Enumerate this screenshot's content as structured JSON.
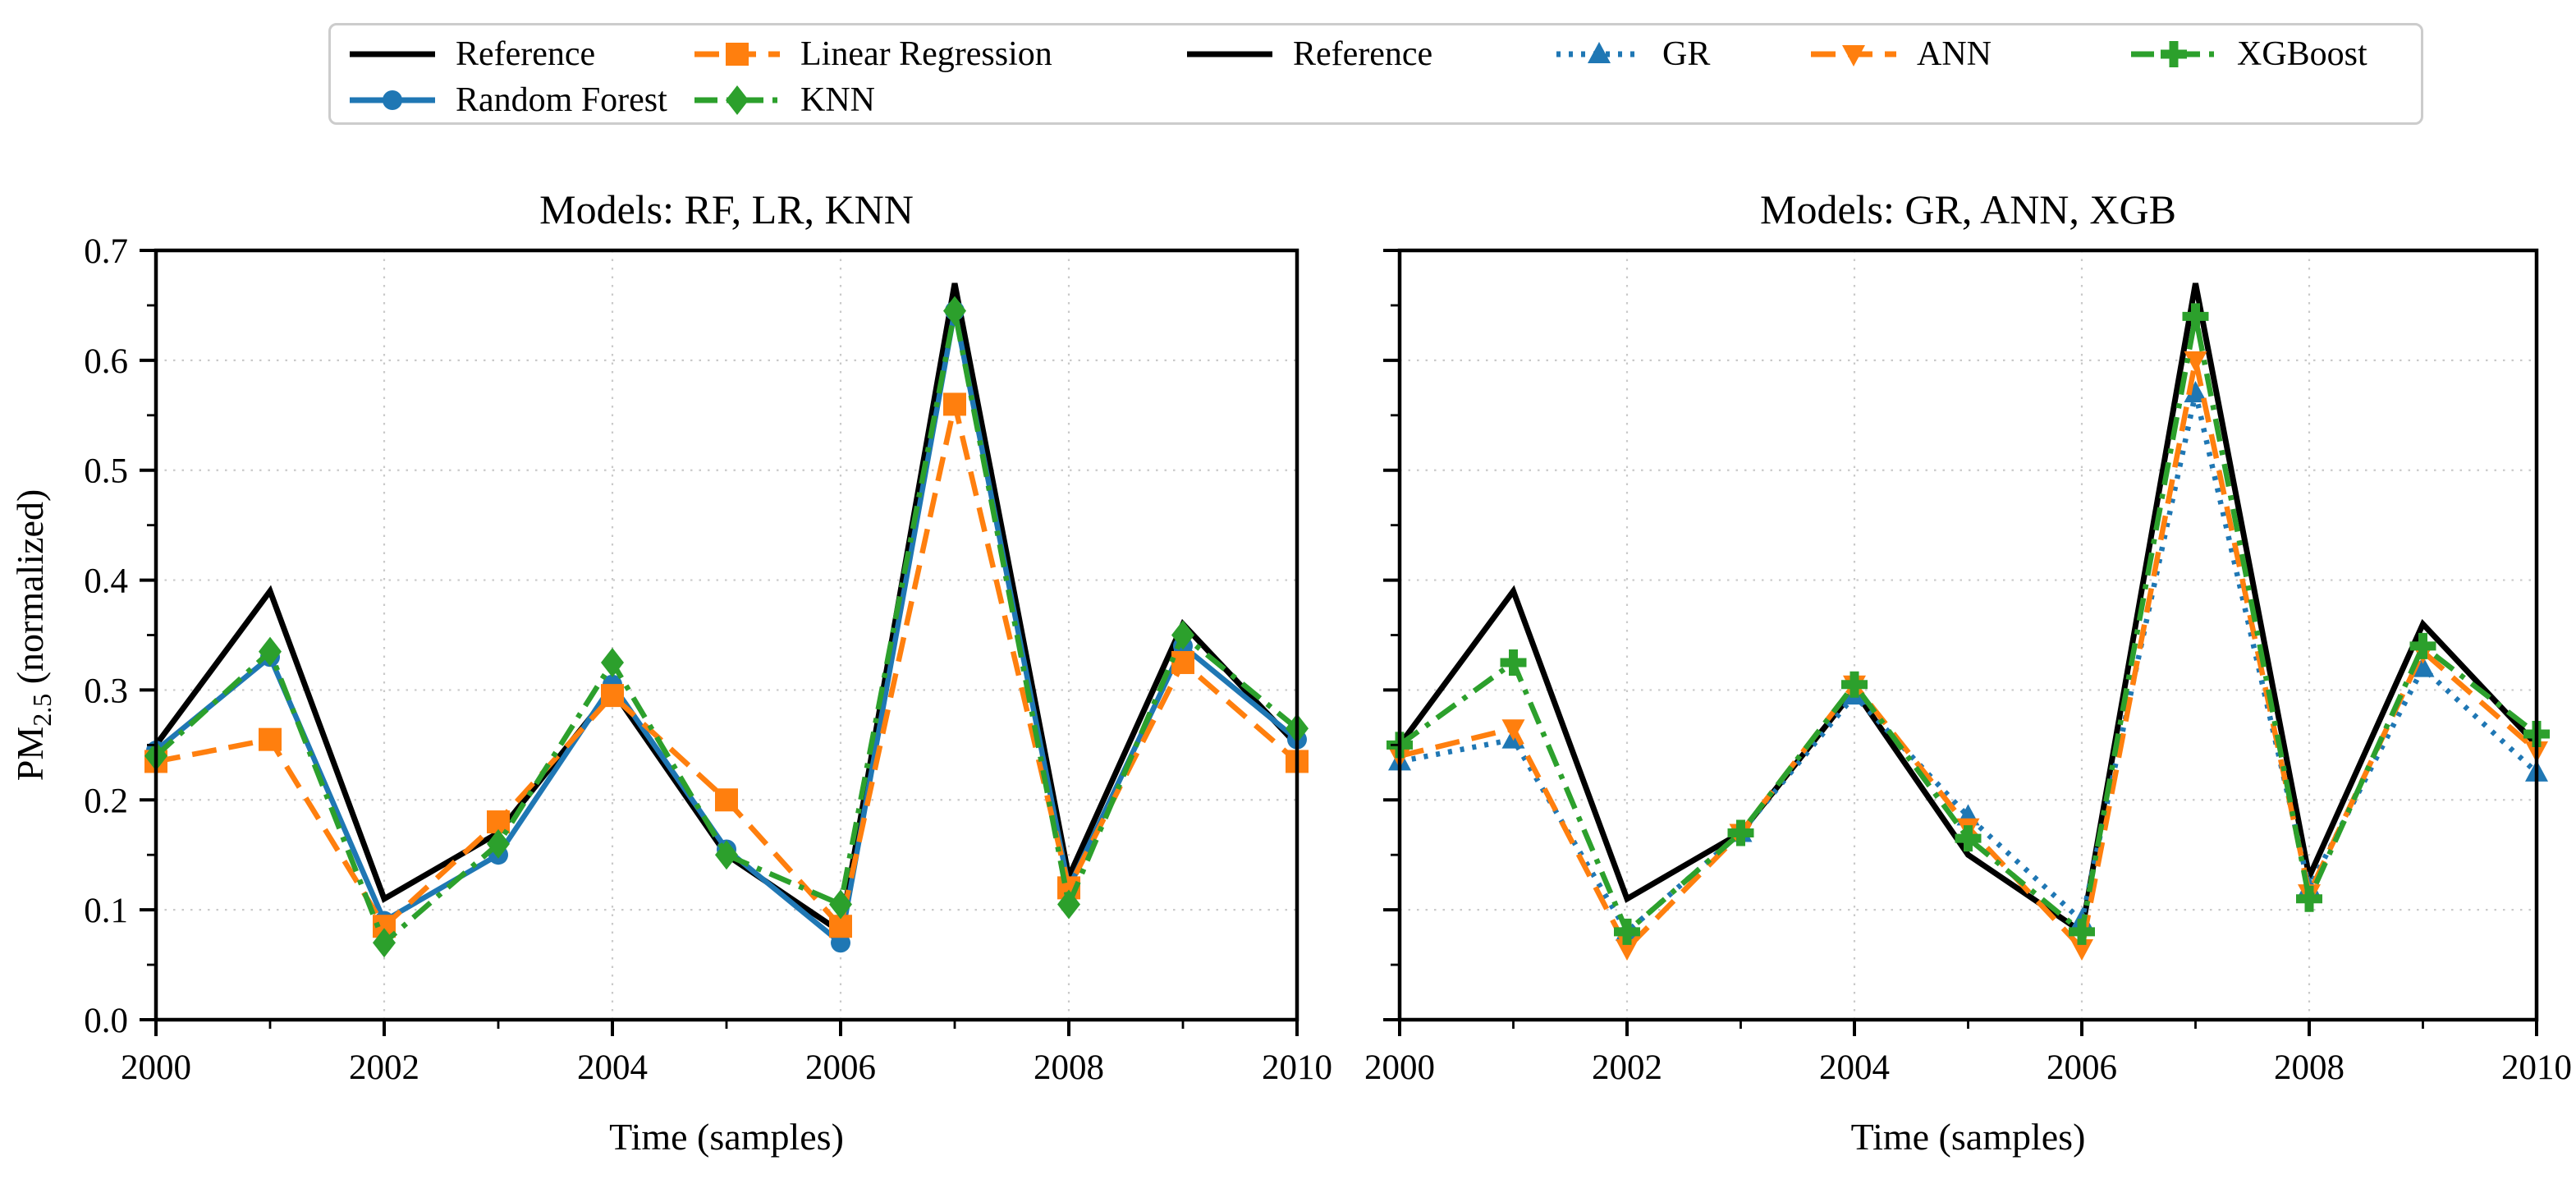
{
  "figure": {
    "background": "#ffffff",
    "colors": {
      "reference": "#000000",
      "blue": "#1f77b4",
      "orange": "#ff7f0e",
      "green": "#2ca02c",
      "grid": "#c9c9c9",
      "legend_border": "#cccccc"
    },
    "legend": {
      "entries": [
        {
          "label": "Reference",
          "color": "#000000",
          "dash": "solid",
          "marker": "none",
          "row": 0,
          "col": 0
        },
        {
          "label": "Random Forest",
          "color": "#1f77b4",
          "dash": "solid",
          "marker": "circle",
          "row": 1,
          "col": 0
        },
        {
          "label": "Linear Regression",
          "color": "#ff7f0e",
          "dash": "dashed",
          "marker": "square",
          "row": 0,
          "col": 1
        },
        {
          "label": "KNN",
          "color": "#2ca02c",
          "dash": "dashdot",
          "marker": "diamond",
          "row": 1,
          "col": 1
        },
        {
          "label": "Reference",
          "color": "#000000",
          "dash": "solid",
          "marker": "none",
          "row": 0,
          "col": 2
        },
        {
          "label": "GR",
          "color": "#1f77b4",
          "dash": "dotted",
          "marker": "triangle-up",
          "row": 0,
          "col": 3
        },
        {
          "label": "ANN",
          "color": "#ff7f0e",
          "dash": "dashed",
          "marker": "triangle-down",
          "row": 0,
          "col": 4
        },
        {
          "label": "XGBoost",
          "color": "#2ca02c",
          "dash": "dashdot",
          "marker": "plus",
          "row": 0,
          "col": 5
        }
      ]
    }
  },
  "chart_data": [
    {
      "type": "line",
      "title": "Models: RF, LR, KNN",
      "xlabel": "Time (samples)",
      "ylabel": {
        "pre": "PM",
        "sub": "2.5",
        "post": " (normalized)"
      },
      "x": [
        2000,
        2001,
        2002,
        2003,
        2004,
        2005,
        2006,
        2007,
        2008,
        2009,
        2010
      ],
      "xlim": [
        2000,
        2010
      ],
      "ylim": [
        0,
        0.7
      ],
      "xticks": [
        2000,
        2002,
        2004,
        2006,
        2008,
        2010
      ],
      "yticks": [
        "0.0",
        "0.1",
        "0.2",
        "0.3",
        "0.4",
        "0.5",
        "0.6",
        "0.7"
      ],
      "grid": true,
      "legend_position": "top",
      "show_ytick_labels": true,
      "series": [
        {
          "name": "Reference",
          "color": "#000000",
          "dash": "solid",
          "marker": "none",
          "values": [
            0.25,
            0.39,
            0.11,
            0.17,
            0.3,
            0.15,
            0.08,
            0.67,
            0.13,
            0.36,
            0.25
          ]
        },
        {
          "name": "Random Forest",
          "color": "#1f77b4",
          "dash": "solid",
          "marker": "circle",
          "values": [
            0.245,
            0.33,
            0.09,
            0.15,
            0.305,
            0.155,
            0.07,
            0.645,
            0.12,
            0.34,
            0.255
          ]
        },
        {
          "name": "Linear Regression",
          "color": "#ff7f0e",
          "dash": "dashed",
          "marker": "square",
          "values": [
            0.235,
            0.255,
            0.085,
            0.18,
            0.295,
            0.2,
            0.085,
            0.56,
            0.12,
            0.325,
            0.235
          ]
        },
        {
          "name": "KNN",
          "color": "#2ca02c",
          "dash": "dashdot",
          "marker": "diamond",
          "values": [
            0.24,
            0.335,
            0.07,
            0.16,
            0.325,
            0.15,
            0.105,
            0.645,
            0.105,
            0.35,
            0.265
          ]
        }
      ]
    },
    {
      "type": "line",
      "title": "Models: GR, ANN, XGB",
      "xlabel": "Time (samples)",
      "ylabel": null,
      "x": [
        2000,
        2001,
        2002,
        2003,
        2004,
        2005,
        2006,
        2007,
        2008,
        2009,
        2010
      ],
      "xlim": [
        2000,
        2010
      ],
      "ylim": [
        0,
        0.7
      ],
      "xticks": [
        2000,
        2002,
        2004,
        2006,
        2008,
        2010
      ],
      "yticks": [
        "0.0",
        "0.1",
        "0.2",
        "0.3",
        "0.4",
        "0.5",
        "0.6",
        "0.7"
      ],
      "grid": true,
      "legend_position": "top",
      "show_ytick_labels": false,
      "series": [
        {
          "name": "Reference",
          "color": "#000000",
          "dash": "solid",
          "marker": "none",
          "values": [
            0.25,
            0.39,
            0.11,
            0.17,
            0.3,
            0.15,
            0.08,
            0.67,
            0.13,
            0.36,
            0.25
          ]
        },
        {
          "name": "GR",
          "color": "#1f77b4",
          "dash": "dotted",
          "marker": "triangle-up",
          "values": [
            0.235,
            0.255,
            0.08,
            0.17,
            0.295,
            0.185,
            0.09,
            0.57,
            0.12,
            0.32,
            0.225
          ]
        },
        {
          "name": "ANN",
          "color": "#ff7f0e",
          "dash": "dashed",
          "marker": "triangle-down",
          "values": [
            0.24,
            0.265,
            0.065,
            0.17,
            0.305,
            0.175,
            0.065,
            0.6,
            0.115,
            0.335,
            0.245
          ]
        },
        {
          "name": "XGBoost",
          "color": "#2ca02c",
          "dash": "dashdot",
          "marker": "plus",
          "values": [
            0.25,
            0.325,
            0.08,
            0.17,
            0.305,
            0.165,
            0.08,
            0.64,
            0.11,
            0.34,
            0.26
          ]
        }
      ]
    }
  ]
}
